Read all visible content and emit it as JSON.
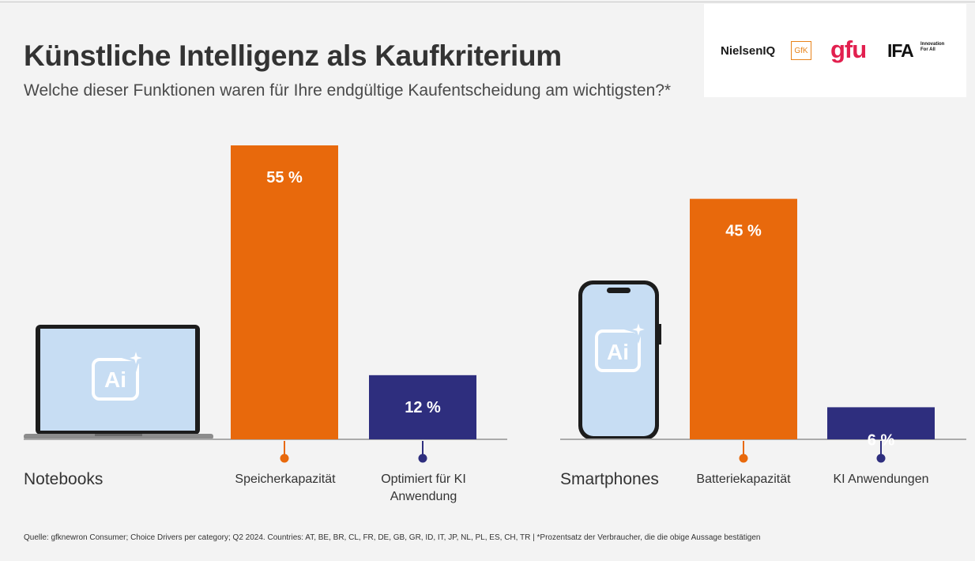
{
  "title": "Künstliche Intelligenz als Kaufkriterium",
  "subtitle": "Welche dieser Funktionen waren für Ihre endgültige Kaufentscheidung am wichtigsten?*",
  "logos": {
    "nielsen": "NielsenIQ",
    "gfk": "GfK",
    "gfu": "gfu",
    "ifa": "IFA",
    "ifa_tagline": "Innovation For All"
  },
  "icon_text": "Ai",
  "colors": {
    "primary": "#e8690c",
    "secondary": "#2e2e7e",
    "device_screen": "#c7ddf3"
  },
  "chart_data": [
    {
      "type": "bar",
      "group": "Notebooks",
      "categories": [
        "Speicherkapazität",
        "Optimiert für KI Anwendung"
      ],
      "values": [
        55,
        12
      ],
      "value_labels": [
        "55 %",
        "12 %"
      ],
      "ylim": [
        0,
        60
      ]
    },
    {
      "type": "bar",
      "group": "Smartphones",
      "categories": [
        "Batteriekapazität",
        "KI Anwendungen"
      ],
      "values": [
        45,
        6
      ],
      "value_labels": [
        "45 %",
        "6 %"
      ],
      "ylim": [
        0,
        60
      ]
    }
  ],
  "footnote": "Quelle: gfknewron Consumer; Choice Drivers per category; Q2 2024. Countries: AT, BE, BR, CL, FR, DE, GB, GR, ID, IT, JP, NL, PL, ES, CH, TR | *Prozentsatz der Verbraucher, die die obige Aussage bestätigen"
}
